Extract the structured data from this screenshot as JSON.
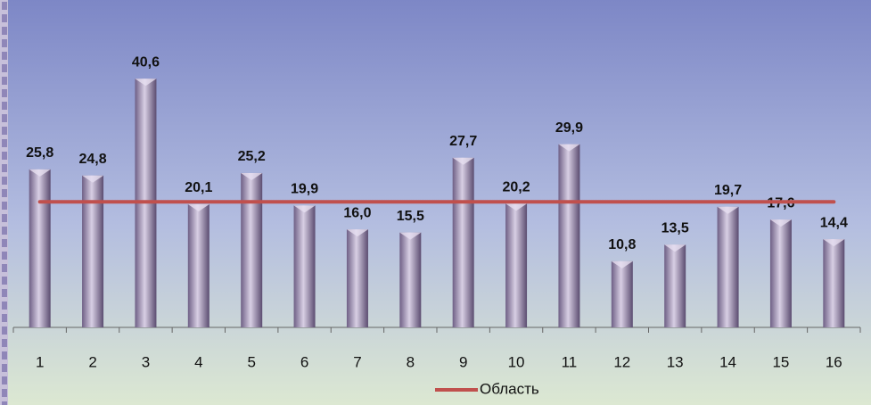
{
  "chart_data": {
    "type": "bar",
    "categories": [
      "1",
      "2",
      "3",
      "4",
      "5",
      "6",
      "7",
      "8",
      "9",
      "10",
      "11",
      "12",
      "13",
      "14",
      "15",
      "16"
    ],
    "values": [
      25.8,
      24.8,
      40.6,
      20.1,
      25.2,
      19.9,
      16.0,
      15.5,
      27.7,
      20.2,
      29.9,
      10.8,
      13.5,
      19.7,
      17.6,
      14.4
    ],
    "value_labels": [
      "25,8",
      "24,8",
      "40,6",
      "20,1",
      "25,2",
      "19,9",
      "16,0",
      "15,5",
      "27,7",
      "20,2",
      "29,9",
      "10,8",
      "13,5",
      "19,7",
      "17,6",
      "14,4"
    ],
    "color": "#9a8cae",
    "lines": [
      {
        "name": "Область",
        "color": "#c0504d",
        "values": [
          20.5,
          20.5,
          20.5,
          20.5,
          20.5,
          20.5,
          20.5,
          20.5,
          20.5,
          20.5,
          20.5,
          20.5,
          20.5,
          20.5,
          20.5,
          20.5
        ]
      }
    ],
    "ylim": [
      0,
      45
    ],
    "legend": "bottom"
  }
}
